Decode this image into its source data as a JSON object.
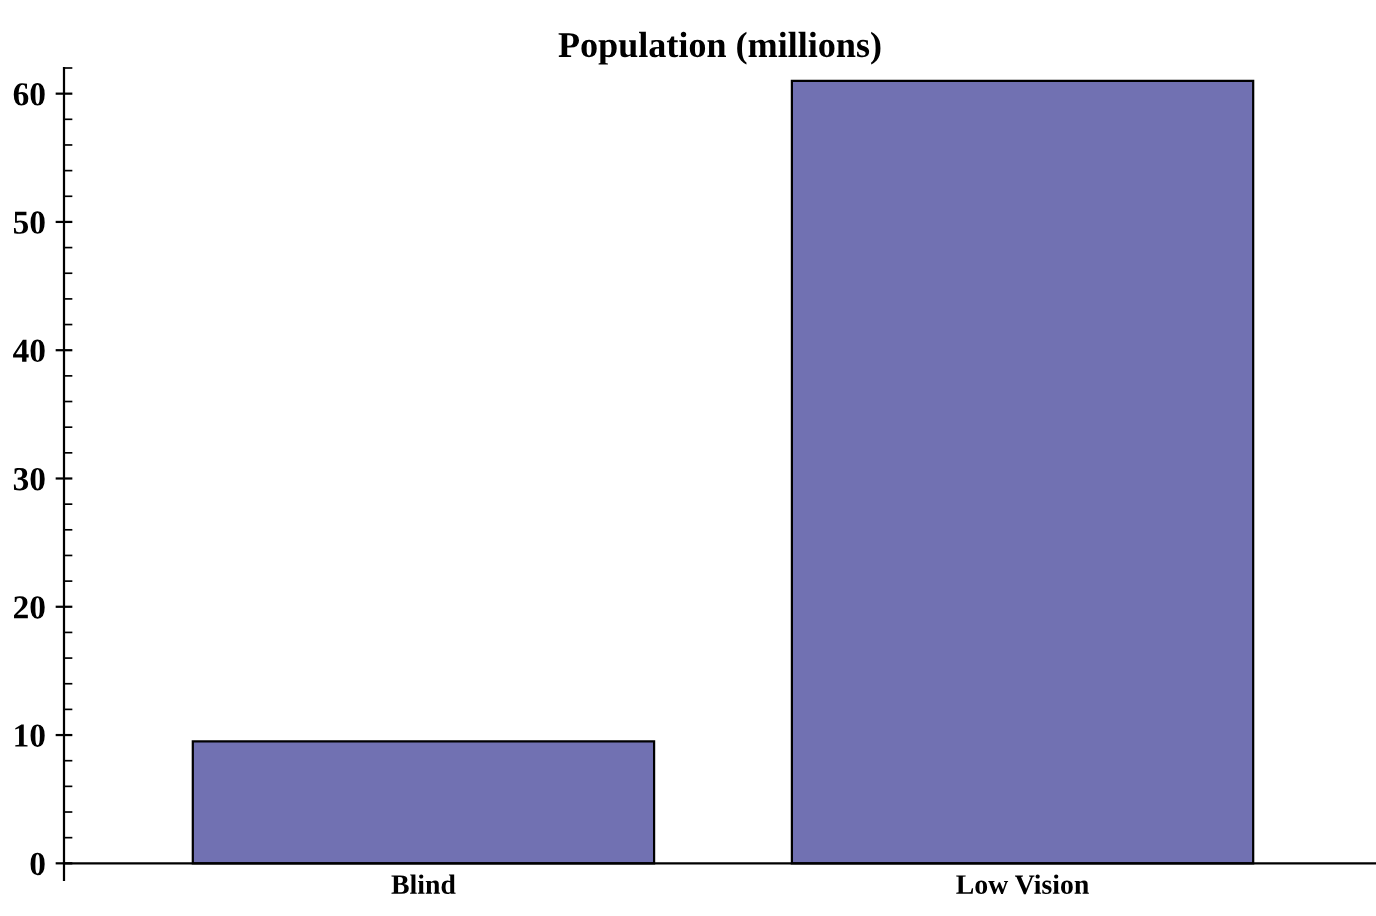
{
  "chart_data": {
    "type": "bar",
    "title": "Population (millions)",
    "categories": [
      "Blind",
      "Low Vision"
    ],
    "values": [
      9.5,
      61
    ],
    "color": "#7171b2",
    "ylim": [
      -1.3,
      62
    ],
    "yticks": [
      0,
      10,
      20,
      30,
      40,
      50,
      60
    ],
    "grid": false
  }
}
